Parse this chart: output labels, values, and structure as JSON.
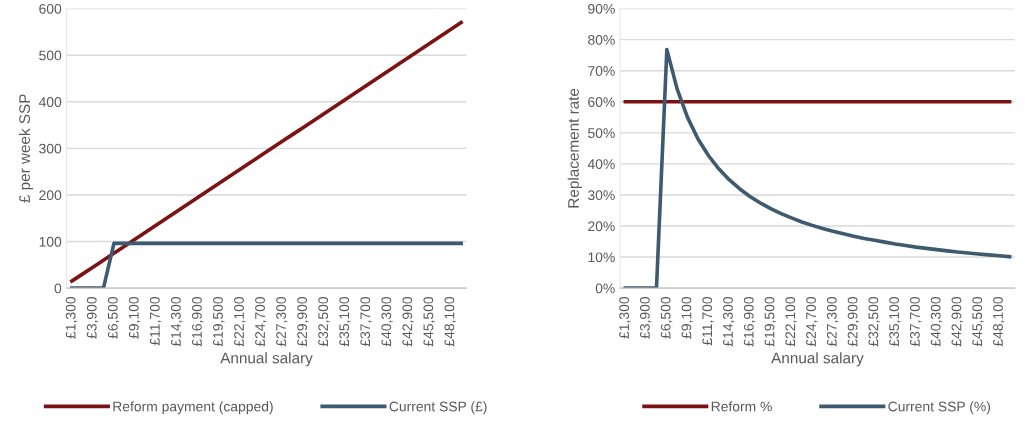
{
  "chart_data": [
    {
      "type": "line",
      "xlabel": "Annual salary",
      "ylabel": "£ per week SSP",
      "categories": [
        "£1,300",
        null,
        "£3,900",
        null,
        "£6,500",
        null,
        "£9,100",
        null,
        "£11,700",
        null,
        "£14,300",
        null,
        "£16,900",
        null,
        "£19,500",
        null,
        "£22,100",
        null,
        "£24,700",
        null,
        "£27,300",
        null,
        "£29,900",
        null,
        "£32,500",
        null,
        "£35,100",
        null,
        "£37,700",
        null,
        "£40,300",
        null,
        "£42,900",
        null,
        "£45,500",
        null,
        "£48,100",
        null
      ],
      "series": [
        {
          "name": "Reform payment (capped)",
          "color": "#7b1315",
          "values": [
            15,
            30,
            45,
            60,
            75,
            90,
            105,
            120,
            135,
            150,
            165,
            180,
            195,
            210,
            225,
            240,
            255,
            270,
            285,
            300,
            315,
            330,
            345,
            360,
            375,
            390,
            405,
            420,
            435,
            450,
            465,
            480,
            495,
            510,
            525,
            540,
            555,
            570
          ]
        },
        {
          "name": "Current SSP (£)",
          "color": "#3d5a6e",
          "values": [
            0,
            0,
            0,
            0,
            96,
            96,
            96,
            96,
            96,
            96,
            96,
            96,
            96,
            96,
            96,
            96,
            96,
            96,
            96,
            96,
            96,
            96,
            96,
            96,
            96,
            96,
            96,
            96,
            96,
            96,
            96,
            96,
            96,
            96,
            96,
            96,
            96,
            96
          ]
        }
      ],
      "ylim": [
        0,
        600
      ],
      "yticks": [
        0,
        100,
        200,
        300,
        400,
        500,
        600
      ],
      "grid": "y",
      "legend": "bottom",
      "marker": "none",
      "line_style": "solid"
    },
    {
      "type": "line",
      "xlabel": "Annual salary",
      "ylabel": "Replacement rate",
      "categories": [
        "£1,300",
        null,
        "£3,900",
        null,
        "£6,500",
        null,
        "£9,100",
        null,
        "£11,700",
        null,
        "£14,300",
        null,
        "£16,900",
        null,
        "£19,500",
        null,
        "£22,100",
        null,
        "£24,700",
        null,
        "£27,300",
        null,
        "£29,900",
        null,
        "£32,500",
        null,
        "£35,100",
        null,
        "£37,700",
        null,
        "£40,300",
        null,
        "£42,900",
        null,
        "£45,500",
        null,
        "£48,100",
        null
      ],
      "series": [
        {
          "name": "Reform %",
          "color": "#7b1315",
          "values": [
            60,
            60,
            60,
            60,
            60,
            60,
            60,
            60,
            60,
            60,
            60,
            60,
            60,
            60,
            60,
            60,
            60,
            60,
            60,
            60,
            60,
            60,
            60,
            60,
            60,
            60,
            60,
            60,
            60,
            60,
            60,
            60,
            60,
            60,
            60,
            60,
            60,
            60
          ]
        },
        {
          "name": "Current SSP (%)",
          "color": "#3d5a6e",
          "values": [
            0,
            0,
            0,
            0,
            76.8,
            64.0,
            54.9,
            48.0,
            42.7,
            38.4,
            34.9,
            32.0,
            29.5,
            27.4,
            25.6,
            24.0,
            22.6,
            21.3,
            20.2,
            19.2,
            18.3,
            17.5,
            16.7,
            16.0,
            15.4,
            14.8,
            14.2,
            13.7,
            13.2,
            12.8,
            12.4,
            12.0,
            11.6,
            11.3,
            11.0,
            10.7,
            10.4,
            10.1
          ]
        }
      ],
      "ylim": [
        0,
        90
      ],
      "yticks": [
        {
          "value": 0,
          "label": "0%"
        },
        {
          "value": 10,
          "label": "10%"
        },
        {
          "value": 20,
          "label": "20%"
        },
        {
          "value": 30,
          "label": "30%"
        },
        {
          "value": 40,
          "label": "40%"
        },
        {
          "value": 50,
          "label": "50%"
        },
        {
          "value": 60,
          "label": "60%"
        },
        {
          "value": 70,
          "label": "70%"
        },
        {
          "value": 80,
          "label": "80%"
        },
        {
          "value": 90,
          "label": "90%"
        }
      ],
      "grid": "y",
      "legend": "bottom",
      "marker": "none",
      "line_style": "solid"
    }
  ]
}
